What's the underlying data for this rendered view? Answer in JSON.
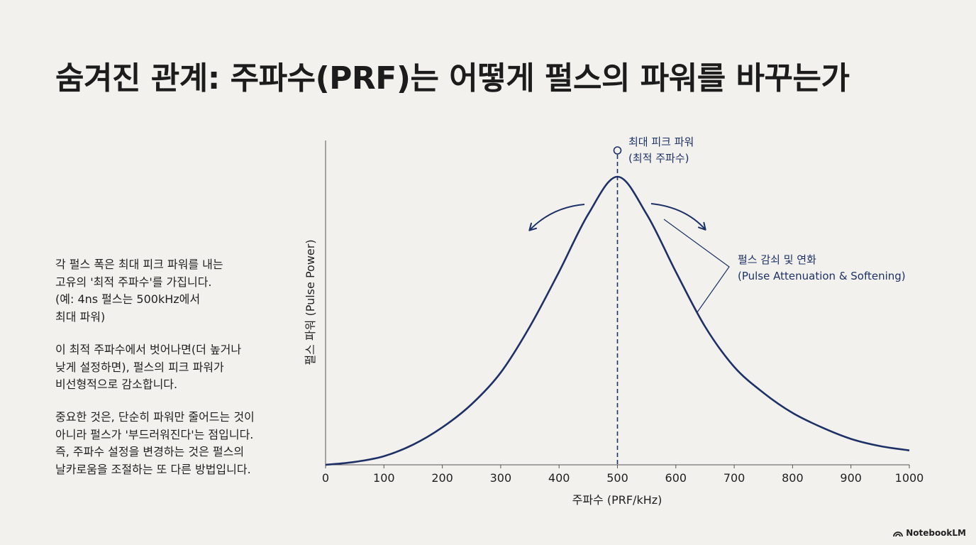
{
  "title": "숨겨진 관계: 주파수(PRF)는 어떻게 펄스의 파워를 바꾸는가",
  "description": [
    [
      "각 펄스 폭은 최대 피크 파워를 내는",
      "고유의 '최적 주파수'를 가집니다.",
      "(예: 4ns 펄스는 500kHz에서",
      "최대 파워)"
    ],
    [
      "이 최적 주파수에서 벗어나면(더 높거나",
      "낮게 설정하면), 펄스의 피크 파워가",
      "비선형적으로 감소합니다."
    ],
    [
      "중요한 것은, 단순히 파워만 줄어드는 것이",
      "아니라 펄스가 '부드러워진다'는 점입니다.",
      "즉, 주파수 설정을 변경하는 것은 펄스의",
      "날카로움을 조절하는 또 다른 방법입니다."
    ]
  ],
  "brand": "NotebookLM",
  "colors": {
    "curve": "#1d3166",
    "text": "#1f1f1f",
    "axis": "#555555",
    "background": "#f2f1ed"
  },
  "chart_data": {
    "type": "line",
    "title": "",
    "xlabel": "주파수 (PRF/kHz)",
    "ylabel": "펄스 파워 (Pulse Power)",
    "xlim": [
      0,
      1000
    ],
    "ylim": [
      0,
      1
    ],
    "xticks": [
      0,
      100,
      200,
      300,
      400,
      500,
      600,
      700,
      800,
      900,
      1000
    ],
    "grid": false,
    "series": [
      {
        "x": [
          0,
          50,
          100,
          150,
          200,
          250,
          300,
          350,
          400,
          450,
          500,
          550,
          600,
          650,
          700,
          750,
          800,
          850,
          900,
          950,
          1000
        ],
        "y": [
          0.0,
          0.01,
          0.03,
          0.07,
          0.13,
          0.21,
          0.32,
          0.48,
          0.67,
          0.87,
          1.0,
          0.87,
          0.67,
          0.48,
          0.34,
          0.25,
          0.18,
          0.13,
          0.09,
          0.065,
          0.05
        ]
      }
    ],
    "annotations": {
      "peak": {
        "x": 500,
        "label_line1": "최대 피크 파워",
        "label_line2": "(최적 주파수)"
      },
      "attenuation": {
        "label_line1": "펄스 감쇠 및 연화",
        "label_line2": "(Pulse Attenuation & Softening)"
      }
    }
  }
}
